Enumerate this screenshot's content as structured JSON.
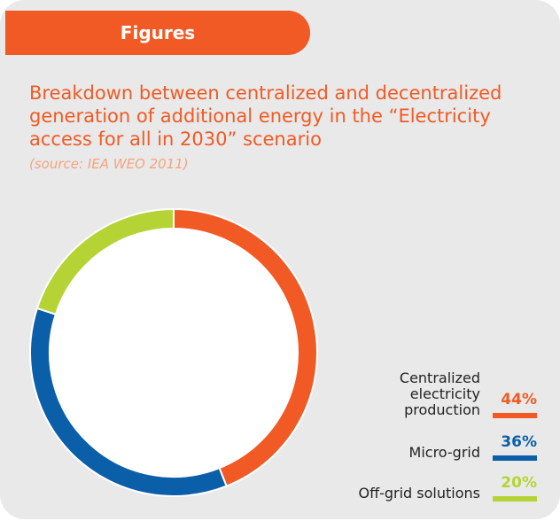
{
  "header": "Figures",
  "chart_data": {
    "type": "donut",
    "title": "Breakdown between centralized and decentralized generation of additional energy in the “Electricity access for all in 2030” scenario",
    "subtitle": "(source: IEA WEO 2011)",
    "categories": [
      "Centralized electricity production",
      "Micro-grid",
      "Off-grid solutions"
    ],
    "values": [
      44,
      36,
      20
    ],
    "value_labels": [
      "44%",
      "36%",
      "20%"
    ],
    "colors": [
      "#f15a24",
      "#0b5ea8",
      "#b5d334"
    ]
  }
}
